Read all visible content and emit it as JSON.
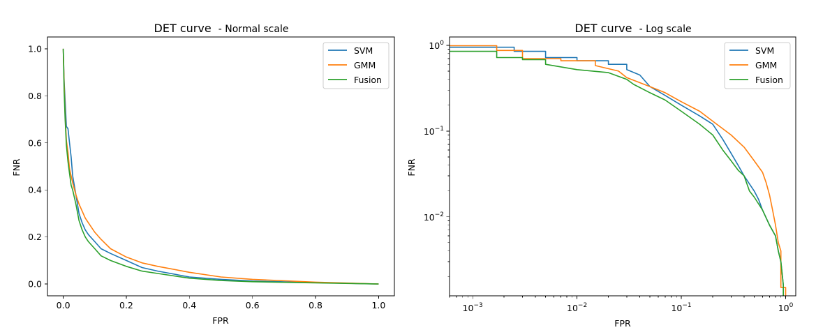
{
  "colors": {
    "SVM": "#1f77b4",
    "GMM": "#ff7f0e",
    "Fusion": "#2ca02c"
  },
  "chart_data": [
    {
      "type": "line",
      "title": "DET curve",
      "subtitle": "- Normal scale",
      "xlabel": "FPR",
      "ylabel": "FNR",
      "xscale": "linear",
      "yscale": "linear",
      "xlim": [
        -0.05,
        1.05
      ],
      "ylim": [
        -0.05,
        1.05
      ],
      "xticks": [
        "0.0",
        "0.2",
        "0.4",
        "0.6",
        "0.8",
        "1.0"
      ],
      "yticks": [
        "0.0",
        "0.2",
        "0.4",
        "0.6",
        "0.8",
        "1.0"
      ],
      "legend_placement": "top-right",
      "grid": false,
      "series": [
        {
          "name": "SVM",
          "x": [
            0,
            0.003,
            0.006,
            0.01,
            0.015,
            0.02,
            0.025,
            0.03,
            0.04,
            0.05,
            0.06,
            0.07,
            0.08,
            0.1,
            0.12,
            0.15,
            0.2,
            0.25,
            0.3,
            0.4,
            0.5,
            0.6,
            0.8,
            1.0
          ],
          "y": [
            1.0,
            0.86,
            0.78,
            0.67,
            0.66,
            0.6,
            0.54,
            0.46,
            0.38,
            0.3,
            0.26,
            0.23,
            0.21,
            0.18,
            0.15,
            0.13,
            0.1,
            0.07,
            0.055,
            0.03,
            0.02,
            0.013,
            0.006,
            0.0
          ]
        },
        {
          "name": "GMM",
          "x": [
            0,
            0.003,
            0.006,
            0.01,
            0.015,
            0.02,
            0.025,
            0.03,
            0.04,
            0.05,
            0.06,
            0.07,
            0.08,
            0.1,
            0.12,
            0.15,
            0.2,
            0.25,
            0.3,
            0.4,
            0.5,
            0.6,
            0.8,
            1.0
          ],
          "y": [
            1.0,
            0.85,
            0.72,
            0.61,
            0.56,
            0.49,
            0.46,
            0.43,
            0.38,
            0.34,
            0.31,
            0.28,
            0.26,
            0.22,
            0.19,
            0.15,
            0.115,
            0.09,
            0.075,
            0.05,
            0.03,
            0.02,
            0.008,
            0.0
          ]
        },
        {
          "name": "Fusion",
          "x": [
            0,
            0.003,
            0.006,
            0.01,
            0.015,
            0.02,
            0.025,
            0.03,
            0.04,
            0.05,
            0.06,
            0.07,
            0.08,
            0.1,
            0.12,
            0.15,
            0.2,
            0.25,
            0.3,
            0.4,
            0.5,
            0.6,
            0.8,
            1.0
          ],
          "y": [
            1.0,
            0.82,
            0.7,
            0.59,
            0.52,
            0.47,
            0.42,
            0.4,
            0.34,
            0.27,
            0.23,
            0.2,
            0.18,
            0.15,
            0.12,
            0.1,
            0.075,
            0.055,
            0.045,
            0.025,
            0.015,
            0.01,
            0.005,
            0.0
          ]
        }
      ]
    },
    {
      "type": "line",
      "title": "DET curve",
      "subtitle": "- Log scale",
      "xlabel": "FPR",
      "ylabel": "FNR",
      "xscale": "log",
      "yscale": "log",
      "xlim": [
        0.0006,
        1.25
      ],
      "ylim": [
        0.0012,
        1.25
      ],
      "xticks": [
        {
          "value": 0.001,
          "base": "10",
          "exp": "−3"
        },
        {
          "value": 0.01,
          "base": "10",
          "exp": "−2"
        },
        {
          "value": 0.1,
          "base": "10",
          "exp": "−1"
        },
        {
          "value": 1,
          "base": "10",
          "exp": "0"
        }
      ],
      "yticks": [
        {
          "value": 0.01,
          "base": "10",
          "exp": "−2"
        },
        {
          "value": 0.1,
          "base": "10",
          "exp": "−1"
        },
        {
          "value": 1,
          "base": "10",
          "exp": "0"
        }
      ],
      "legend_placement": "top-right",
      "grid": false,
      "series": [
        {
          "name": "SVM",
          "x": [
            0.0006,
            0.0025,
            0.0025,
            0.005,
            0.005,
            0.01,
            0.01,
            0.02,
            0.02,
            0.03,
            0.03,
            0.04,
            0.05,
            0.07,
            0.1,
            0.15,
            0.2,
            0.25,
            0.3,
            0.35,
            0.4,
            0.5,
            0.55,
            0.6,
            0.7,
            0.8,
            0.85,
            0.9,
            0.95,
            0.95
          ],
          "y": [
            0.95,
            0.95,
            0.85,
            0.85,
            0.72,
            0.72,
            0.66,
            0.66,
            0.6,
            0.6,
            0.52,
            0.45,
            0.33,
            0.26,
            0.2,
            0.15,
            0.12,
            0.08,
            0.055,
            0.04,
            0.03,
            0.02,
            0.016,
            0.012,
            0.008,
            0.006,
            0.004,
            0.003,
            0.0016,
            0.0012
          ]
        },
        {
          "name": "GMM",
          "x": [
            0.0006,
            0.0017,
            0.0017,
            0.003,
            0.003,
            0.007,
            0.007,
            0.015,
            0.015,
            0.025,
            0.03,
            0.05,
            0.07,
            0.1,
            0.15,
            0.2,
            0.3,
            0.4,
            0.5,
            0.6,
            0.65,
            0.7,
            0.75,
            0.8,
            0.85,
            0.9,
            0.9,
            1.0,
            1.0
          ],
          "y": [
            0.99,
            0.99,
            0.87,
            0.87,
            0.7,
            0.7,
            0.66,
            0.66,
            0.58,
            0.5,
            0.42,
            0.33,
            0.28,
            0.22,
            0.17,
            0.13,
            0.09,
            0.065,
            0.045,
            0.033,
            0.025,
            0.018,
            0.012,
            0.008,
            0.005,
            0.004,
            0.0015,
            0.0015,
            0.0012
          ]
        },
        {
          "name": "Fusion",
          "x": [
            0.0006,
            0.0017,
            0.0017,
            0.003,
            0.003,
            0.005,
            0.005,
            0.01,
            0.02,
            0.03,
            0.035,
            0.05,
            0.07,
            0.1,
            0.15,
            0.2,
            0.25,
            0.3,
            0.35,
            0.4,
            0.45,
            0.5,
            0.6,
            0.7,
            0.8,
            0.85,
            0.9,
            0.95,
            0.95
          ],
          "y": [
            0.85,
            0.85,
            0.72,
            0.72,
            0.68,
            0.68,
            0.6,
            0.52,
            0.48,
            0.4,
            0.35,
            0.28,
            0.23,
            0.17,
            0.12,
            0.09,
            0.06,
            0.045,
            0.035,
            0.03,
            0.02,
            0.017,
            0.012,
            0.008,
            0.006,
            0.004,
            0.003,
            0.0016,
            0.0012
          ]
        }
      ]
    }
  ]
}
